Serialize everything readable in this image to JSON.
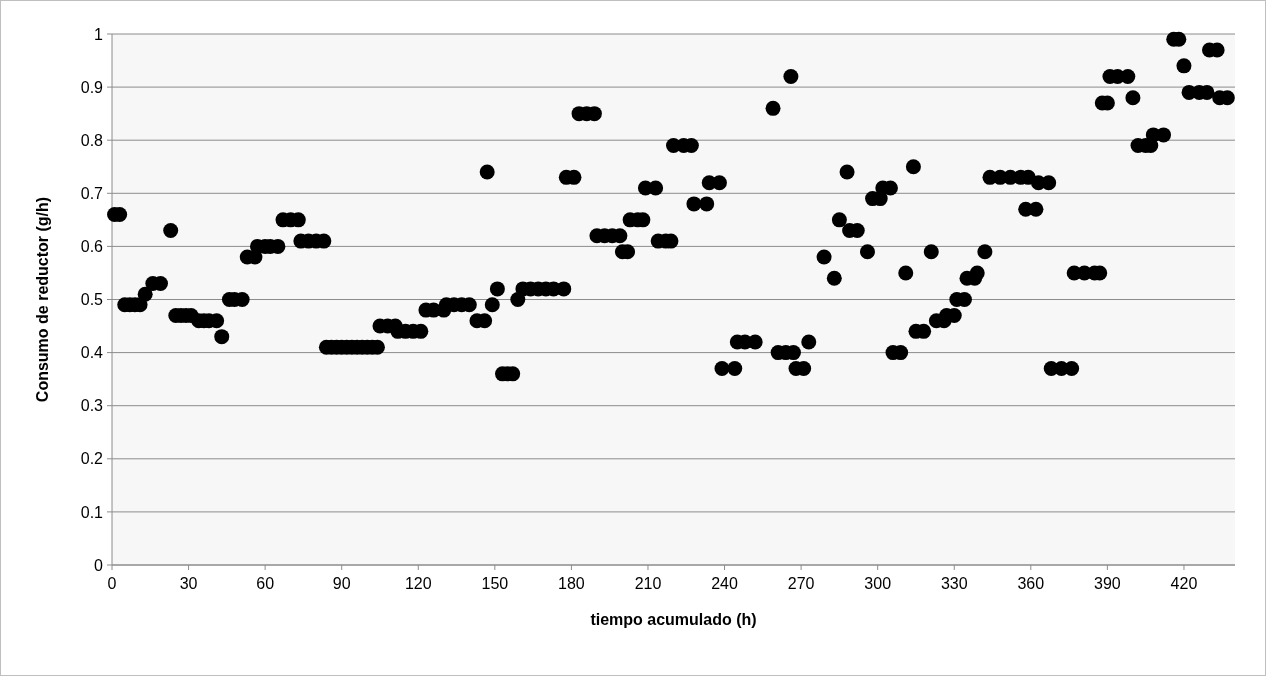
{
  "chart_data": {
    "type": "scatter",
    "xlabel": "tiempo acumulado (h)",
    "ylabel": "Consumo de reductor (g/h)",
    "x": [
      1,
      3,
      5,
      7,
      9,
      11,
      13,
      16,
      19,
      23,
      25,
      27,
      29,
      31,
      34,
      36,
      38,
      41,
      43,
      46,
      48,
      51,
      53,
      56,
      57,
      60,
      62,
      65,
      67,
      70,
      73,
      74,
      77,
      80,
      83,
      84,
      86,
      88,
      90,
      92,
      94,
      96,
      98,
      100,
      102,
      104,
      105,
      108,
      111,
      112,
      115,
      118,
      121,
      123,
      126,
      130,
      131,
      134,
      137,
      140,
      143,
      146,
      147,
      149,
      151,
      153,
      155,
      157,
      159,
      161,
      164,
      167,
      170,
      173,
      177,
      178,
      181,
      183,
      186,
      189,
      190,
      193,
      196,
      199,
      200,
      202,
      203,
      206,
      208,
      209,
      213,
      214,
      217,
      219,
      220,
      224,
      227,
      228,
      233,
      234,
      238,
      239,
      244,
      245,
      248,
      252,
      259,
      261,
      264,
      267,
      266,
      268,
      271,
      273,
      279,
      283,
      285,
      288,
      289,
      292,
      296,
      298,
      301,
      302,
      305,
      306,
      309,
      311,
      314,
      315,
      318,
      321,
      323,
      326,
      327,
      330,
      331,
      334,
      335,
      338,
      339,
      342,
      344,
      348,
      352,
      356,
      359,
      358,
      362,
      363,
      367,
      368,
      372,
      376,
      377,
      381,
      385,
      387,
      388,
      390,
      391,
      394,
      398,
      400,
      402,
      405,
      407,
      408,
      412,
      416,
      418,
      420,
      422,
      426,
      429,
      430,
      433,
      434,
      437
    ],
    "values": [
      0.66,
      0.66,
      0.49,
      0.49,
      0.49,
      0.49,
      0.51,
      0.53,
      0.53,
      0.63,
      0.47,
      0.47,
      0.47,
      0.47,
      0.46,
      0.46,
      0.46,
      0.46,
      0.43,
      0.5,
      0.5,
      0.5,
      0.58,
      0.58,
      0.6,
      0.6,
      0.6,
      0.6,
      0.65,
      0.65,
      0.65,
      0.61,
      0.61,
      0.61,
      0.61,
      0.41,
      0.41,
      0.41,
      0.41,
      0.41,
      0.41,
      0.41,
      0.41,
      0.41,
      0.41,
      0.41,
      0.45,
      0.45,
      0.45,
      0.44,
      0.44,
      0.44,
      0.44,
      0.48,
      0.48,
      0.48,
      0.49,
      0.49,
      0.49,
      0.49,
      0.46,
      0.46,
      0.74,
      0.49,
      0.52,
      0.36,
      0.36,
      0.36,
      0.5,
      0.52,
      0.52,
      0.52,
      0.52,
      0.52,
      0.52,
      0.73,
      0.73,
      0.85,
      0.85,
      0.85,
      0.62,
      0.62,
      0.62,
      0.62,
      0.59,
      0.59,
      0.65,
      0.65,
      0.65,
      0.71,
      0.71,
      0.61,
      0.61,
      0.61,
      0.79,
      0.79,
      0.79,
      0.68,
      0.68,
      0.72,
      0.72,
      0.37,
      0.37,
      0.42,
      0.42,
      0.42,
      0.86,
      0.4,
      0.4,
      0.4,
      0.92,
      0.37,
      0.37,
      0.42,
      0.58,
      0.54,
      0.65,
      0.74,
      0.63,
      0.63,
      0.59,
      0.69,
      0.69,
      0.71,
      0.71,
      0.4,
      0.4,
      0.55,
      0.75,
      0.44,
      0.44,
      0.59,
      0.46,
      0.46,
      0.47,
      0.47,
      0.5,
      0.5,
      0.54,
      0.54,
      0.55,
      0.59,
      0.73,
      0.73,
      0.73,
      0.73,
      0.73,
      0.67,
      0.67,
      0.72,
      0.72,
      0.37,
      0.37,
      0.37,
      0.55,
      0.55,
      0.55,
      0.55,
      0.87,
      0.87,
      0.92,
      0.92,
      0.92,
      0.88,
      0.79,
      0.79,
      0.79,
      0.81,
      0.81,
      0.99,
      0.99,
      0.94,
      0.89,
      0.89,
      0.89,
      0.97,
      0.97,
      0.88,
      0.88
    ],
    "color": "#000000",
    "marker": "circle",
    "grid": "y",
    "xlim": [
      0,
      440
    ],
    "xticks": [
      0,
      30,
      60,
      90,
      120,
      150,
      180,
      210,
      240,
      270,
      300,
      330,
      360,
      390,
      420
    ],
    "ylim": [
      0,
      1
    ],
    "yticks": [
      0,
      0.1,
      0.2,
      0.3,
      0.4,
      0.5,
      0.6,
      0.7,
      0.8,
      0.9,
      1
    ]
  }
}
